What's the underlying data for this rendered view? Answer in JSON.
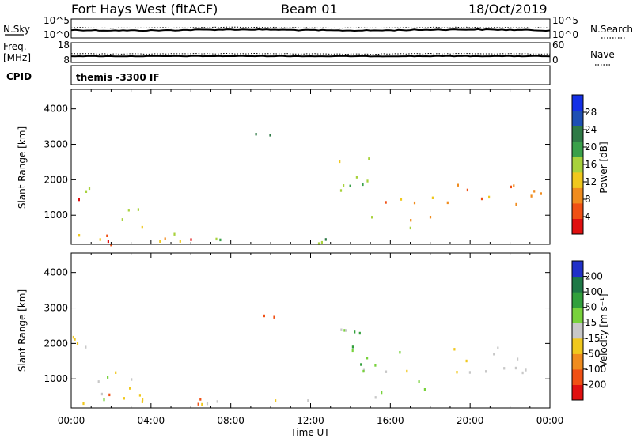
{
  "header": {
    "station": "Fort Hays West (fitACF)",
    "beam": "Beam 01",
    "date": "18/Oct/2019"
  },
  "strips": {
    "nsky_label": "N.Sky",
    "nsky_ticks": [
      "10^5",
      "10^0"
    ],
    "nsearch_label": "N.Search",
    "nsearch_ticks": [
      "10^5",
      "10^0"
    ],
    "freq_label": "Freq.",
    "freq_unit": "[MHz]",
    "freq_ticks": [
      "18",
      "8"
    ],
    "nave_label": "Nave",
    "nave_ticks": [
      "60",
      "0"
    ],
    "cpid_label": "CPID",
    "cpid_text": "themis -3300 IF"
  },
  "colors": {
    "power": [
      "#1430e6",
      "#1e50b4",
      "#2f7a46",
      "#3aa04a",
      "#a8d23c",
      "#f0c81e",
      "#f08c1e",
      "#f05014",
      "#e01010"
    ],
    "velocity": [
      "#2030c8",
      "#1e7846",
      "#32a03c",
      "#78d23c",
      "#c8c8c8",
      "#f0c81e",
      "#f08c1e",
      "#f05014",
      "#e01010"
    ]
  },
  "chart_data": [
    {
      "type": "heatmap",
      "ylabel": "Slant Range [km]",
      "colorbar_label": "Power [dB]",
      "colorbar_ticks": [
        "28",
        "24",
        "20",
        "16",
        "12",
        "8",
        "4"
      ],
      "x_ticks": [
        "00:00",
        "04:00",
        "08:00",
        "12:00",
        "16:00",
        "20:00",
        "00:00"
      ],
      "y_ticks": [
        "4000",
        "3000",
        "2000",
        "1000"
      ],
      "x_range_hours": [
        0,
        24
      ],
      "y_range_km": [
        180,
        4550
      ],
      "regions": [
        {
          "t": [
            0.0,
            0.6
          ],
          "r": [
            1450,
            2100
          ],
          "level": 7
        },
        {
          "t": [
            0.6,
            1.3
          ],
          "r": [
            1700,
            2550
          ],
          "level": 4
        },
        {
          "t": [
            0.3,
            3.4
          ],
          "r": [
            200,
            650
          ],
          "level": 6
        },
        {
          "t": [
            1.6,
            3.2
          ],
          "r": [
            200,
            500
          ],
          "level": 8
        },
        {
          "t": [
            1.5,
            3.8
          ],
          "r": [
            650,
            1250
          ],
          "level": 4
        },
        {
          "t": [
            3.8,
            6.5
          ],
          "r": [
            200,
            750
          ],
          "level": 5
        },
        {
          "t": [
            4.6,
            6.3
          ],
          "r": [
            200,
            380
          ],
          "level": 8
        },
        {
          "t": [
            6.5,
            13.5
          ],
          "r": [
            200,
            450
          ],
          "level": 3
        },
        {
          "t": [
            9.2,
            10.3
          ],
          "r": [
            2700,
            3400
          ],
          "level": 1
        },
        {
          "t": [
            13.2,
            15.0
          ],
          "r": [
            1400,
            3100
          ],
          "level": 4
        },
        {
          "t": [
            14.5,
            18.5
          ],
          "r": [
            1200,
            1600
          ],
          "level": 6
        },
        {
          "t": [
            15.0,
            18.0
          ],
          "r": [
            500,
            1000
          ],
          "level": 5
        },
        {
          "t": [
            18.5,
            23.7
          ],
          "r": [
            1200,
            1900
          ],
          "level": 6
        },
        {
          "t": [
            22.0,
            23.7
          ],
          "r": [
            1450,
            1750
          ],
          "level": 7
        }
      ]
    },
    {
      "type": "heatmap",
      "ylabel": "Slant Range [km]",
      "colorbar_label": "Velocity [m s⁻¹]",
      "colorbar_ticks": [
        "200",
        "100",
        "50",
        "15",
        "-15",
        "-50",
        "-100",
        "-200"
      ],
      "x_ticks": [
        "00:00",
        "04:00",
        "08:00",
        "12:00",
        "16:00",
        "20:00",
        "00:00"
      ],
      "y_ticks": [
        "4000",
        "3000",
        "2000",
        "1000"
      ],
      "xlabel": "Time UT",
      "x_range_hours": [
        0,
        24
      ],
      "y_range_km": [
        180,
        4550
      ],
      "regions": [
        {
          "t": [
            0.0,
            1.3
          ],
          "r": [
            1450,
            2550
          ],
          "level": 4
        },
        {
          "t": [
            0.3,
            3.8
          ],
          "r": [
            200,
            1250
          ],
          "level": 4
        },
        {
          "t": [
            1.8,
            4.5
          ],
          "r": [
            200,
            600
          ],
          "level": 6
        },
        {
          "t": [
            4.5,
            6.8
          ],
          "r": [
            200,
            500
          ],
          "level": 6
        },
        {
          "t": [
            6.5,
            13.5
          ],
          "r": [
            200,
            450
          ],
          "level": 5
        },
        {
          "t": [
            9.2,
            10.3
          ],
          "r": [
            2700,
            3400
          ],
          "level": 7
        },
        {
          "t": [
            13.2,
            15.0
          ],
          "r": [
            1400,
            3100
          ],
          "level": 3
        },
        {
          "t": [
            14.5,
            23.7
          ],
          "r": [
            1200,
            2000
          ],
          "level": 4
        },
        {
          "t": [
            15.0,
            18.0
          ],
          "r": [
            500,
            1000
          ],
          "level": 4
        }
      ]
    }
  ]
}
